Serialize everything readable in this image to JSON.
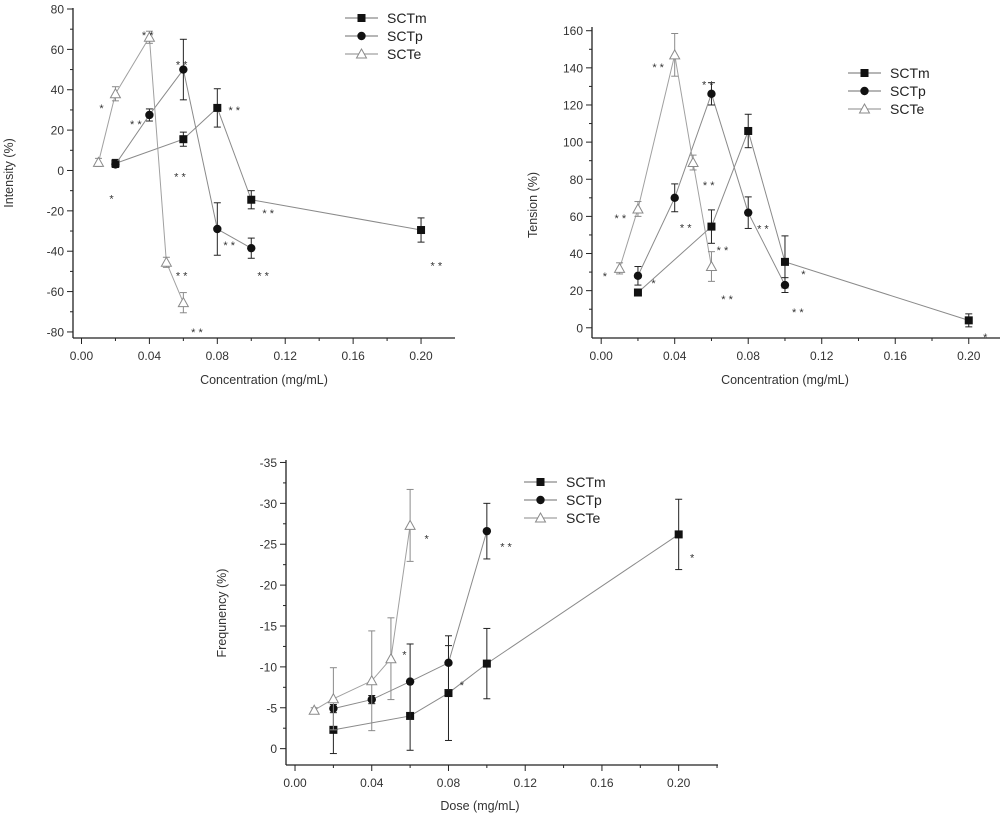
{
  "series_styles": {
    "SCTm": {
      "marker": "square",
      "fill": "#111111",
      "line": "#8a8a8a",
      "err": "#222222"
    },
    "SCTp": {
      "marker": "circle",
      "fill": "#111111",
      "line": "#8a8a8a",
      "err": "#222222"
    },
    "SCTe": {
      "marker": "triangle",
      "fill": "#ffffff",
      "stroke": "#8a8a8a",
      "line": "#a0a0a0",
      "err": "#8a8a8a"
    }
  },
  "chart_data": [
    {
      "type": "line",
      "xlabel": "Concentration (mg/mL)",
      "ylabel": "Intensity (%)",
      "xlim": [
        -0.005,
        0.22
      ],
      "ylim": [
        -83,
        80.5
      ],
      "xticks": [
        "0.00",
        "0.04",
        "0.08",
        "0.12",
        "0.16",
        "0.20"
      ],
      "yticks": [
        "-80",
        "-60",
        "-40",
        "-20",
        "0",
        "20",
        "40",
        "60",
        "80"
      ],
      "legend": "top-right",
      "series": [
        {
          "name": "SCTm",
          "x": [
            0.02,
            0.06,
            0.08,
            0.1,
            0.2
          ],
          "y": [
            3.5,
            15.5,
            31,
            -14.5,
            -29.5
          ],
          "err": [
            2,
            3.5,
            9.5,
            4.5,
            6
          ]
        },
        {
          "name": "SCTp",
          "x": [
            0.02,
            0.04,
            0.06,
            0.08,
            0.1
          ],
          "y": [
            3,
            27.5,
            50,
            -29,
            -38.5
          ],
          "err": [
            1.5,
            3,
            15,
            13,
            5
          ]
        },
        {
          "name": "SCTe",
          "x": [
            0.01,
            0.02,
            0.04,
            0.05,
            0.06
          ],
          "y": [
            4,
            38,
            66,
            -45.5,
            -65.5
          ],
          "err": [
            2,
            3.5,
            3,
            2.5,
            5
          ]
        }
      ],
      "annotations": [
        {
          "text": "*",
          "x": 0.0118,
          "y": 31
        },
        {
          "text": "**",
          "x": 0.039,
          "y": 67
        },
        {
          "text": "**",
          "x": 0.059,
          "y": 52.5
        },
        {
          "text": "**",
          "x": 0.032,
          "y": 23
        },
        {
          "text": "**",
          "x": 0.09,
          "y": 30
        },
        {
          "text": "**",
          "x": 0.058,
          "y": -3
        },
        {
          "text": "*",
          "x": 0.0177,
          "y": -14
        },
        {
          "text": "**",
          "x": 0.11,
          "y": -21
        },
        {
          "text": "**",
          "x": 0.087,
          "y": -37
        },
        {
          "text": "**",
          "x": 0.059,
          "y": -52
        },
        {
          "text": "**",
          "x": 0.107,
          "y": -52
        },
        {
          "text": "**",
          "x": 0.209,
          "y": -47
        },
        {
          "text": "**",
          "x": 0.068,
          "y": -80
        }
      ]
    },
    {
      "type": "line",
      "xlabel": "Concentration (mg/mL)",
      "ylabel": "Tension (%)",
      "xlim": [
        -0.005,
        0.217
      ],
      "ylim": [
        -5.5,
        162
      ],
      "xticks": [
        "0.00",
        "0.04",
        "0.08",
        "0.12",
        "0.16",
        "0.20"
      ],
      "yticks": [
        "0",
        "20",
        "40",
        "60",
        "80",
        "100",
        "120",
        "140",
        "160"
      ],
      "legend": "top-right",
      "series": [
        {
          "name": "SCTm",
          "x": [
            0.02,
            0.06,
            0.08,
            0.1,
            0.2
          ],
          "y": [
            19,
            54.5,
            106,
            35.5,
            4
          ],
          "err": [
            1.5,
            9,
            9,
            14,
            3.5
          ]
        },
        {
          "name": "SCTp",
          "x": [
            0.02,
            0.04,
            0.06,
            0.08,
            0.1
          ],
          "y": [
            28,
            70,
            126,
            62,
            23
          ],
          "err": [
            5,
            7.5,
            6,
            8.5,
            4
          ]
        },
        {
          "name": "SCTe",
          "x": [
            0.01,
            0.02,
            0.04,
            0.05,
            0.06
          ],
          "y": [
            32,
            64,
            147,
            89,
            33
          ],
          "err": [
            3,
            4,
            11.5,
            4,
            8
          ]
        }
      ],
      "annotations": [
        {
          "text": "*",
          "x": 0.002,
          "y": 28
        },
        {
          "text": "**",
          "x": 0.0104,
          "y": 59
        },
        {
          "text": "**",
          "x": 0.031,
          "y": 140.5
        },
        {
          "text": "**",
          "x": 0.058,
          "y": 131
        },
        {
          "text": "**",
          "x": 0.0585,
          "y": 77
        },
        {
          "text": "**",
          "x": 0.046,
          "y": 54
        },
        {
          "text": "**",
          "x": 0.066,
          "y": 42
        },
        {
          "text": "*",
          "x": 0.0285,
          "y": 24
        },
        {
          "text": "**",
          "x": 0.0685,
          "y": 15.5
        },
        {
          "text": "**",
          "x": 0.088,
          "y": 53.5
        },
        {
          "text": "*",
          "x": 0.11,
          "y": 29
        },
        {
          "text": "**",
          "x": 0.107,
          "y": 8.4
        },
        {
          "text": "*",
          "x": 0.209,
          "y": -5
        }
      ]
    },
    {
      "type": "line",
      "xlabel": "Dose (mg/mL)",
      "ylabel": "Frequnency (%)",
      "xlim": [
        -0.0047,
        0.2205
      ],
      "ylim": [
        2,
        -35.3
      ],
      "xticks": [
        "0.00",
        "0.04",
        "0.08",
        "0.12",
        "0.16",
        "0.20"
      ],
      "yticks": [
        "0",
        "-5",
        "-10",
        "-15",
        "-20",
        "-25",
        "-30",
        "-35"
      ],
      "legend": "top-right",
      "series": [
        {
          "name": "SCTm",
          "x": [
            0.02,
            0.06,
            0.08,
            0.1,
            0.2
          ],
          "y": [
            -2.3,
            -4,
            -6.8,
            -10.4,
            -26.2
          ],
          "err": [
            2.9,
            4.2,
            5.8,
            4.3,
            4.3
          ]
        },
        {
          "name": "SCTp",
          "x": [
            0.02,
            0.04,
            0.06,
            0.08,
            0.1
          ],
          "y": [
            -4.9,
            -6,
            -8.2,
            -10.5,
            -26.6
          ],
          "err": [
            0.5,
            0.5,
            4.6,
            3.3,
            3.4
          ]
        },
        {
          "name": "SCTe",
          "x": [
            0.01,
            0.02,
            0.04,
            0.05,
            0.06
          ],
          "y": [
            -4.7,
            -6.1,
            -8.3,
            -11,
            -27.3
          ],
          "err": [
            0.3,
            3.8,
            6.1,
            5,
            4.4
          ]
        }
      ],
      "annotations": [
        {
          "text": "*",
          "x": 0.0686,
          "y": -25.7
        },
        {
          "text": "**",
          "x": 0.11,
          "y": -24.7
        },
        {
          "text": "*",
          "x": 0.207,
          "y": -23.4
        },
        {
          "text": "*",
          "x": 0.057,
          "y": -11.5
        },
        {
          "text": "*",
          "x": 0.087,
          "y": -7.8
        }
      ]
    }
  ]
}
